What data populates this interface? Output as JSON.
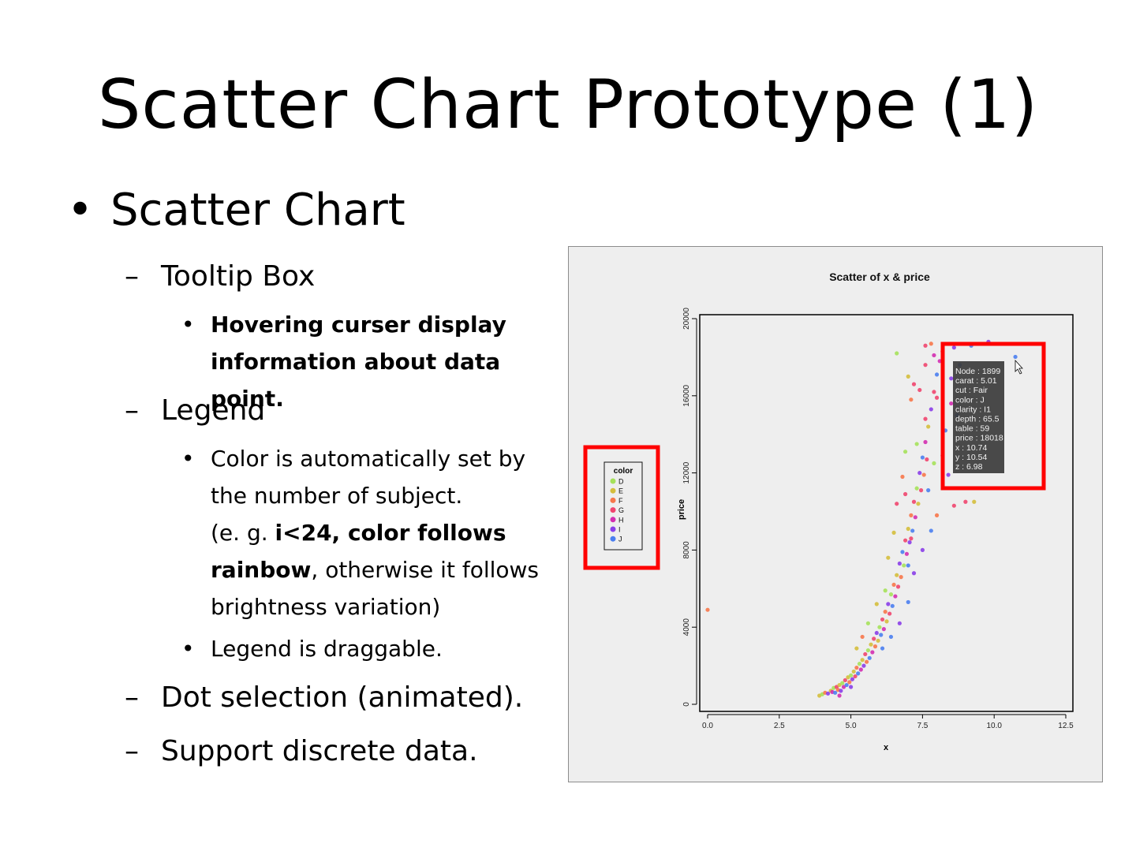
{
  "slide": {
    "title": "Scatter Chart Prototype (1)",
    "bullet_main": "Scatter Chart",
    "sections": {
      "tooltip_box": "Tooltip Box",
      "tooltip_detail_1": "Hovering curser display",
      "tooltip_detail_2": "information about data point.",
      "legend": "Legend",
      "legend_color_1": "Color is automatically set by",
      "legend_color_2": "the number of subject.",
      "legend_color_3a": "(e. g. ",
      "legend_color_3b": "i<24, color follows",
      "legend_color_4a": "rainbow",
      "legend_color_4b": ", otherwise it follows",
      "legend_color_5": "brightness variation)",
      "legend_drag": "Legend is draggable.",
      "dot_selection": "Dot selection (animated).",
      "discrete": "Support discrete data."
    },
    "bullet_glyph": "•",
    "dash_glyph": "–"
  },
  "chart_data": {
    "type": "scatter",
    "title": "Scatter of x & price",
    "xlabel": "x",
    "ylabel": "price",
    "xlim": [
      0,
      12.5
    ],
    "ylim": [
      0,
      20000
    ],
    "xticks": [
      "0.0",
      "2.5",
      "5.0",
      "7.5",
      "10.0",
      "12.5"
    ],
    "yticks": [
      "0",
      "4000",
      "8000",
      "12000",
      "16000",
      "20000"
    ],
    "legend": {
      "title": "color",
      "placement": "left",
      "entries": [
        {
          "label": "D",
          "color": "#a5e15a"
        },
        {
          "label": "E",
          "color": "#d4be3c"
        },
        {
          "label": "F",
          "color": "#f7774a"
        },
        {
          "label": "G",
          "color": "#f0456e"
        },
        {
          "label": "H",
          "color": "#d32eb0"
        },
        {
          "label": "I",
          "color": "#8a3ee8"
        },
        {
          "label": "J",
          "color": "#4a7ef0"
        }
      ]
    },
    "tooltip": {
      "lines": [
        "Node : 1899",
        "carat : 5.01",
        "cut : Fair",
        "color : J",
        "clarity : I1",
        "depth : 65.5",
        "table : 59",
        "price : 18018",
        "x : 10.74",
        "y : 10.54",
        "z : 6.98"
      ],
      "x": 10.74,
      "y": 18018
    },
    "points": [
      {
        "x": 0.0,
        "y": 4900,
        "c": "F"
      },
      {
        "x": 3.9,
        "y": 450,
        "c": "E"
      },
      {
        "x": 4.0,
        "y": 520,
        "c": "D"
      },
      {
        "x": 4.1,
        "y": 600,
        "c": "F"
      },
      {
        "x": 4.2,
        "y": 560,
        "c": "I"
      },
      {
        "x": 4.3,
        "y": 700,
        "c": "E"
      },
      {
        "x": 4.35,
        "y": 640,
        "c": "H"
      },
      {
        "x": 4.4,
        "y": 850,
        "c": "D"
      },
      {
        "x": 4.45,
        "y": 600,
        "c": "J"
      },
      {
        "x": 4.5,
        "y": 900,
        "c": "G"
      },
      {
        "x": 4.55,
        "y": 750,
        "c": "F"
      },
      {
        "x": 4.6,
        "y": 1000,
        "c": "E"
      },
      {
        "x": 4.65,
        "y": 700,
        "c": "I"
      },
      {
        "x": 4.7,
        "y": 1100,
        "c": "D"
      },
      {
        "x": 4.75,
        "y": 900,
        "c": "H"
      },
      {
        "x": 4.8,
        "y": 1250,
        "c": "G"
      },
      {
        "x": 4.85,
        "y": 1000,
        "c": "J"
      },
      {
        "x": 4.9,
        "y": 1400,
        "c": "E"
      },
      {
        "x": 4.95,
        "y": 1150,
        "c": "F"
      },
      {
        "x": 5.0,
        "y": 1500,
        "c": "D"
      },
      {
        "x": 5.05,
        "y": 1300,
        "c": "I"
      },
      {
        "x": 5.1,
        "y": 1700,
        "c": "E"
      },
      {
        "x": 5.15,
        "y": 1450,
        "c": "G"
      },
      {
        "x": 5.2,
        "y": 1900,
        "c": "F"
      },
      {
        "x": 5.25,
        "y": 1600,
        "c": "J"
      },
      {
        "x": 5.3,
        "y": 2100,
        "c": "D"
      },
      {
        "x": 5.35,
        "y": 1800,
        "c": "H"
      },
      {
        "x": 5.4,
        "y": 2300,
        "c": "E"
      },
      {
        "x": 5.45,
        "y": 2000,
        "c": "I"
      },
      {
        "x": 5.5,
        "y": 2600,
        "c": "G"
      },
      {
        "x": 5.55,
        "y": 2200,
        "c": "F"
      },
      {
        "x": 5.6,
        "y": 2800,
        "c": "D"
      },
      {
        "x": 5.65,
        "y": 2400,
        "c": "J"
      },
      {
        "x": 5.7,
        "y": 3100,
        "c": "E"
      },
      {
        "x": 5.75,
        "y": 2700,
        "c": "H"
      },
      {
        "x": 5.8,
        "y": 3400,
        "c": "G"
      },
      {
        "x": 5.85,
        "y": 3000,
        "c": "F"
      },
      {
        "x": 5.9,
        "y": 3700,
        "c": "I"
      },
      {
        "x": 5.95,
        "y": 3300,
        "c": "E"
      },
      {
        "x": 6.0,
        "y": 4000,
        "c": "D"
      },
      {
        "x": 6.05,
        "y": 3600,
        "c": "J"
      },
      {
        "x": 6.1,
        "y": 4400,
        "c": "G"
      },
      {
        "x": 6.15,
        "y": 3900,
        "c": "H"
      },
      {
        "x": 6.2,
        "y": 4800,
        "c": "F"
      },
      {
        "x": 6.25,
        "y": 4300,
        "c": "E"
      },
      {
        "x": 6.3,
        "y": 5200,
        "c": "I"
      },
      {
        "x": 6.35,
        "y": 4700,
        "c": "G"
      },
      {
        "x": 6.4,
        "y": 5700,
        "c": "D"
      },
      {
        "x": 6.45,
        "y": 5100,
        "c": "J"
      },
      {
        "x": 6.5,
        "y": 6200,
        "c": "F"
      },
      {
        "x": 6.55,
        "y": 5600,
        "c": "H"
      },
      {
        "x": 6.6,
        "y": 6700,
        "c": "E"
      },
      {
        "x": 6.65,
        "y": 6100,
        "c": "G"
      },
      {
        "x": 6.7,
        "y": 7300,
        "c": "I"
      },
      {
        "x": 6.75,
        "y": 6600,
        "c": "F"
      },
      {
        "x": 6.8,
        "y": 7900,
        "c": "J"
      },
      {
        "x": 6.85,
        "y": 7200,
        "c": "D"
      },
      {
        "x": 6.9,
        "y": 8500,
        "c": "G"
      },
      {
        "x": 6.95,
        "y": 7800,
        "c": "H"
      },
      {
        "x": 7.0,
        "y": 9100,
        "c": "E"
      },
      {
        "x": 7.05,
        "y": 8400,
        "c": "I"
      },
      {
        "x": 7.1,
        "y": 9800,
        "c": "F"
      },
      {
        "x": 7.15,
        "y": 9000,
        "c": "J"
      },
      {
        "x": 7.2,
        "y": 10500,
        "c": "G"
      },
      {
        "x": 7.25,
        "y": 9700,
        "c": "H"
      },
      {
        "x": 7.3,
        "y": 11200,
        "c": "D"
      },
      {
        "x": 7.35,
        "y": 10400,
        "c": "E"
      },
      {
        "x": 7.4,
        "y": 12000,
        "c": "I"
      },
      {
        "x": 7.45,
        "y": 11100,
        "c": "G"
      },
      {
        "x": 7.5,
        "y": 12800,
        "c": "J"
      },
      {
        "x": 7.55,
        "y": 11900,
        "c": "F"
      },
      {
        "x": 7.6,
        "y": 13600,
        "c": "H"
      },
      {
        "x": 7.65,
        "y": 12700,
        "c": "G"
      },
      {
        "x": 7.7,
        "y": 14400,
        "c": "E"
      },
      {
        "x": 7.8,
        "y": 15300,
        "c": "I"
      },
      {
        "x": 7.9,
        "y": 16200,
        "c": "G"
      },
      {
        "x": 8.0,
        "y": 17100,
        "c": "J"
      },
      {
        "x": 8.1,
        "y": 17800,
        "c": "H"
      },
      {
        "x": 8.2,
        "y": 18300,
        "c": "G"
      },
      {
        "x": 7.6,
        "y": 18600,
        "c": "G"
      },
      {
        "x": 7.8,
        "y": 18700,
        "c": "F"
      },
      {
        "x": 8.6,
        "y": 18500,
        "c": "I"
      },
      {
        "x": 9.2,
        "y": 18600,
        "c": "J"
      },
      {
        "x": 9.8,
        "y": 18800,
        "c": "I"
      },
      {
        "x": 6.6,
        "y": 18200,
        "c": "D"
      },
      {
        "x": 7.0,
        "y": 17000,
        "c": "E"
      },
      {
        "x": 7.2,
        "y": 16600,
        "c": "G"
      },
      {
        "x": 8.5,
        "y": 15600,
        "c": "H"
      },
      {
        "x": 8.3,
        "y": 14200,
        "c": "J"
      },
      {
        "x": 8.2,
        "y": 12900,
        "c": "G"
      },
      {
        "x": 7.9,
        "y": 12500,
        "c": "D"
      },
      {
        "x": 7.3,
        "y": 13500,
        "c": "D"
      },
      {
        "x": 6.9,
        "y": 13100,
        "c": "D"
      },
      {
        "x": 9.0,
        "y": 10500,
        "c": "G"
      },
      {
        "x": 9.3,
        "y": 10500,
        "c": "E"
      },
      {
        "x": 8.6,
        "y": 10300,
        "c": "G"
      },
      {
        "x": 8.0,
        "y": 9800,
        "c": "F"
      },
      {
        "x": 7.8,
        "y": 9000,
        "c": "J"
      },
      {
        "x": 7.5,
        "y": 8000,
        "c": "I"
      },
      {
        "x": 7.0,
        "y": 7200,
        "c": "J"
      },
      {
        "x": 6.2,
        "y": 5900,
        "c": "D"
      },
      {
        "x": 5.9,
        "y": 5200,
        "c": "E"
      },
      {
        "x": 5.6,
        "y": 4200,
        "c": "D"
      },
      {
        "x": 5.4,
        "y": 3500,
        "c": "F"
      },
      {
        "x": 5.2,
        "y": 2900,
        "c": "E"
      },
      {
        "x": 6.4,
        "y": 3500,
        "c": "J"
      },
      {
        "x": 6.7,
        "y": 4200,
        "c": "I"
      },
      {
        "x": 7.0,
        "y": 5300,
        "c": "J"
      },
      {
        "x": 7.2,
        "y": 6800,
        "c": "I"
      },
      {
        "x": 6.1,
        "y": 2900,
        "c": "J"
      },
      {
        "x": 5.0,
        "y": 900,
        "c": "I"
      },
      {
        "x": 4.6,
        "y": 450,
        "c": "H"
      },
      {
        "x": 7.6,
        "y": 14800,
        "c": "G"
      },
      {
        "x": 8.0,
        "y": 15900,
        "c": "G"
      },
      {
        "x": 7.4,
        "y": 16300,
        "c": "G"
      },
      {
        "x": 7.6,
        "y": 17600,
        "c": "G"
      },
      {
        "x": 7.9,
        "y": 18100,
        "c": "H"
      },
      {
        "x": 7.1,
        "y": 15800,
        "c": "F"
      },
      {
        "x": 6.8,
        "y": 11800,
        "c": "F"
      },
      {
        "x": 6.6,
        "y": 10400,
        "c": "G"
      },
      {
        "x": 6.9,
        "y": 10900,
        "c": "G"
      },
      {
        "x": 7.1,
        "y": 8600,
        "c": "G"
      },
      {
        "x": 6.5,
        "y": 8900,
        "c": "E"
      },
      {
        "x": 6.3,
        "y": 7600,
        "c": "E"
      },
      {
        "x": 8.8,
        "y": 17600,
        "c": "J"
      },
      {
        "x": 8.5,
        "y": 16900,
        "c": "I"
      },
      {
        "x": 8.7,
        "y": 15000,
        "c": "J"
      },
      {
        "x": 8.4,
        "y": 11900,
        "c": "I"
      },
      {
        "x": 7.7,
        "y": 11100,
        "c": "J"
      },
      {
        "x": 10.74,
        "y": 18018,
        "c": "J"
      }
    ]
  }
}
